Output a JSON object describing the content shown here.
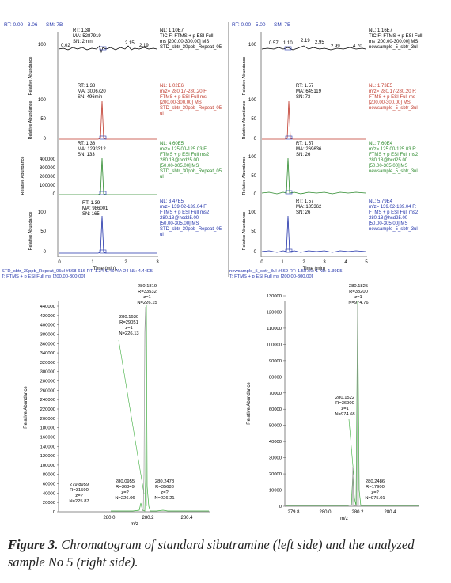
{
  "chromatograms": {
    "left": {
      "header_rt": "RT: 0.00 - 3.06",
      "header_sm": "SM: 7B",
      "panels": [
        {
          "color": "#000000",
          "ylabel": "Relative Abundance",
          "ann": [
            "RT: 1.38",
            "MA: 5287919",
            "SN: 2min"
          ],
          "nl": "NL: 1.10E7",
          "info": [
            "TIC F: FTMS + p ESI Full",
            "ms [200.00-300.00]  MS",
            "STD_sbtr_30ppb_Repeat_05"
          ],
          "ticks": [
            "100",
            "50",
            "0"
          ],
          "peak_labels": [
            "0.02",
            "2.15",
            "2.19"
          ]
        },
        {
          "color": "#c0392b",
          "ylabel": "Relative Abundance",
          "ann": [
            "RT: 1.38",
            "MA: 3006720",
            "SN: 496min"
          ],
          "nl": "NL: 1.02E6",
          "info": [
            "m/z= 280.17-280.20 F:",
            "FTMS + p ESI Full ms",
            "[200.00-300.00]  MS",
            "STD_sbtr_30ppb_Repeat_05",
            "ul"
          ],
          "ticks": [
            "100",
            "50",
            "0"
          ]
        },
        {
          "color": "#2e8b2e",
          "ylabel": "Relative Abundance",
          "ann": [
            "RT: 1.38",
            "MA: 1293312",
            "SN: 133"
          ],
          "nl": "NL: 4.60E5",
          "info": [
            "m/z= 125.00-125.03 F:",
            "FTMS + p ESI Full ms2",
            "280.18@hcd25.00",
            "[50.00-305.00]  MS",
            "STD_sbtr_30ppb_Repeat_05",
            "ul"
          ],
          "ticks": [
            "400000",
            "300000",
            "200000",
            "100000",
            "0"
          ]
        },
        {
          "color": "#2233aa",
          "ylabel": "Relative Abundance",
          "ann": [
            "RT: 1.39",
            "MA: 986001",
            "SN: 165"
          ],
          "nl": "NL: 3.47E5",
          "info": [
            "m/z= 139.02-139.04 F:",
            "FTMS + p ESI Full ms2",
            "280.18@hcd25.00",
            "[50.00-305.00]  MS",
            "STD_sbtr_30ppb_Repeat_05",
            "ul"
          ],
          "ticks": [
            "100",
            "50",
            "0"
          ]
        }
      ],
      "xticks": [
        "0",
        "1",
        "2",
        "3"
      ],
      "xlabel": "Time (min)"
    },
    "right": {
      "header_rt": "RT: 0.00 - 5.00",
      "header_sm": "SM: 7B",
      "panels": [
        {
          "color": "#000000",
          "ylabel": "Relative Abundance",
          "ann": [],
          "nl": "NL: 1.16E7",
          "info": [
            "TIC F: FTMS + p ESI Full",
            "ms [200.00-300.00]  MS",
            "newsample_5_sbtr_3ul"
          ],
          "ticks": [
            "100",
            "50",
            "0"
          ],
          "peak_labels": [
            "0.57",
            "1.10",
            "2.19",
            "2.95",
            "2.99",
            "4.70"
          ]
        },
        {
          "color": "#c0392b",
          "ylabel": "Relative Abundance",
          "ann": [
            "RT: 1.57",
            "MA: 645119",
            "SN: 73"
          ],
          "nl": "NL: 1.73E5",
          "info": [
            "m/z= 280.17-280.20 F:",
            "FTMS + p ESI Full ms",
            "[200.00-300.00]  MS",
            "newsample_5_sbtr_3ul"
          ],
          "ticks": [
            "100",
            "50",
            "0"
          ]
        },
        {
          "color": "#2e8b2e",
          "ylabel": "Relative Abundance",
          "ann": [
            "RT: 1.57",
            "MA: 269636",
            "SN: 26"
          ],
          "nl": "NL: 7.60E4",
          "info": [
            "m/z= 125.00-125.03 F:",
            "FTMS + p ESI Full ms2",
            "280.18@hcd25.00",
            "[50.00-305.00]  MS",
            "newsample_5_sbtr_3ul"
          ],
          "ticks": [
            "100",
            "50",
            "0"
          ]
        },
        {
          "color": "#2233aa",
          "ylabel": "Relative Abundance",
          "ann": [
            "RT: 1.57",
            "MA: 185362",
            "SN: 26"
          ],
          "nl": "NL: 5.79E4",
          "info": [
            "m/z= 139.02-139.04 F:",
            "FTMS + p ESI Full ms2",
            "280.18@hcd25.00",
            "[50.00-305.00]  MS",
            "newsample_5_sbtr_3ul"
          ],
          "ticks": [
            "100",
            "50",
            "0"
          ]
        }
      ],
      "xticks": [
        "0",
        "1",
        "2",
        "3",
        "4",
        "5"
      ],
      "xlabel": "Time (min)"
    }
  },
  "spectra": {
    "left": {
      "header1": "STD_sbtr_30ppb_Repeat_05ul #568-616  RT: 1.34-1.45  AV: 24  NL: 4.44E5",
      "header2": "T: FTMS + p ESI Full ms [200.00-300.00]",
      "ylabel": "Relative Abundance",
      "xlabel": "m/z",
      "yticks": [
        "440000",
        "420000",
        "400000",
        "380000",
        "360000",
        "340000",
        "320000",
        "300000",
        "280000",
        "260000",
        "240000",
        "220000",
        "200000",
        "180000",
        "160000",
        "140000",
        "120000",
        "100000",
        "80000",
        "60000",
        "40000",
        "20000",
        "0"
      ],
      "xticks": [
        "280.0",
        "280.2",
        "280.4"
      ],
      "labels": [
        [
          "280.1819",
          "R=33532",
          "z=1",
          "N=226.15"
        ],
        [
          "280.1630",
          "R=29051",
          "z=1",
          "N=226.13"
        ],
        [
          "279.8959",
          "R=31590",
          "z=?",
          "N=225.87"
        ],
        [
          "280.0955",
          "R=36849",
          "z=?",
          "N=226.06"
        ],
        [
          "280.2478",
          "R=35683",
          "z=?",
          "N=226.21"
        ]
      ]
    },
    "right": {
      "header1": "newsample_5_sbtr_3ul #669  RT: 1.58  AV: 1  NL: 1.39E5",
      "header2": "T: FTMS + p ESI Full ms [200.00-300.00]",
      "ylabel": "Relative Abundance",
      "xlabel": "m/z",
      "yticks": [
        "130000",
        "120000",
        "110000",
        "100000",
        "90000",
        "80000",
        "70000",
        "60000",
        "50000",
        "40000",
        "30000",
        "20000",
        "10000",
        "0"
      ],
      "xticks": [
        "279.8",
        "280.0",
        "280.2",
        "280.4"
      ],
      "labels": [
        [
          "280.1825",
          "R=33200",
          "z=1",
          "N=974.76"
        ],
        [
          "280.1522",
          "R=36900",
          "z=1",
          "N=974.68"
        ],
        [
          "280.2486",
          "R=17900",
          "z=?",
          "N=975.01"
        ]
      ]
    }
  },
  "caption": {
    "label": "Figure 3.",
    "text": "Chromatogram of standard sibutramine (left side) and the analyzed sample No 5 (right side)."
  }
}
